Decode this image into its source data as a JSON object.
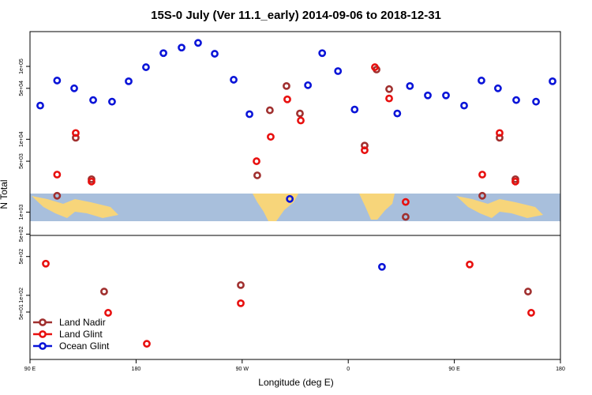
{
  "chart_data": {
    "type": "scatter",
    "title": "15S-0 July (Ver 11.1_early)   2014-09-06 to 2018-12-31",
    "xlabel": "Longitude (deg E)",
    "ylabel": "N Total",
    "xlim": [
      90,
      540
    ],
    "xticks": [
      {
        "value": 90,
        "label": "90 E"
      },
      {
        "value": 180,
        "label": "180"
      },
      {
        "value": 270,
        "label": "90 W"
      },
      {
        "value": 360,
        "label": "0"
      },
      {
        "value": 450,
        "label": "90 E"
      },
      {
        "value": 540,
        "label": "180"
      }
    ],
    "legend": "bottom-left",
    "series": [
      {
        "name": "Land Nadir",
        "color": "#a0302f"
      },
      {
        "name": "Land Glint",
        "color": "#e8100f"
      },
      {
        "name": "Ocean Glint",
        "color": "#0a14d8"
      }
    ],
    "panels": [
      {
        "log": true,
        "ylim": [
          480,
          300000
        ],
        "yticks": [
          {
            "value": 500,
            "label": "5e+02"
          },
          {
            "value": 1000,
            "label": "1e+03"
          },
          {
            "value": 5000,
            "label": "5e+03"
          },
          {
            "value": 10000,
            "label": "1e+04"
          },
          {
            "value": 50000,
            "label": "5e+04"
          },
          {
            "value": 100000,
            "label": "1e+05"
          }
        ],
        "series": [
          {
            "x": [
              113,
              128.8,
              142.2,
              282.8,
              293.5,
              307.6,
              319,
              373.9,
              384,
              394.7,
              408.7,
              473.7,
              488.4,
              501.8
            ],
            "values": [
              1680,
              10500,
              2830,
              3200,
              25000,
              53800,
              22600,
              8200,
              90600,
              48800,
              862,
              1680,
              10500,
              2830
            ]
          },
          {
            "x": [
              113,
              128.8,
              142.2,
              282.2,
              294.2,
              308.3,
              319.7,
              373.9,
              382.6,
              394.7,
              408.7,
              473.7,
              488.4,
              501.8
            ],
            "values": [
              3280,
              12200,
              2630,
              5000,
              10800,
              35300,
              18100,
              7070,
              97500,
              36300,
              1380,
              3280,
              12200,
              2630
            ]
          },
          {
            "x": [
              98.7,
              113,
              127.5,
              143.6,
              159.6,
              173.7,
              188.4,
              203.2,
              218.6,
              232.6,
              246.7,
              262.8,
              276.2,
              310.4,
              325.8,
              337.9,
              351.3,
              365.4,
              401.6,
              412.3,
              427.5,
              442.9,
              458.3,
              473,
              487,
              502.5,
              519.3,
              533.3
            ],
            "values": [
              29000,
              64000,
              50000,
              34500,
              32800,
              62500,
              97500,
              152000,
              181000,
              210000,
              149000,
              65600,
              22100,
              1520,
              55200,
              152000,
              86100,
              25600,
              22600,
              53800,
              40000,
              40000,
              29000,
              64000,
              50000,
              34500,
              32800,
              62500
            ]
          }
        ]
      },
      {
        "log": true,
        "ylim": [
          7,
          1200
        ],
        "yticks": [
          {
            "value": 50,
            "label": "5e+01"
          },
          {
            "value": 100,
            "label": "1e+02"
          },
          {
            "value": 500,
            "label": "5e+02"
          }
        ],
        "series": [
          {
            "x": [
              152.9,
              268.8,
              512.5
            ],
            "values": [
              117,
              153,
              117
            ]
          },
          {
            "x": [
              103.4,
              156.3,
              268.8,
              189.1,
              463,
              515.2
            ],
            "values": [
              372,
              48.5,
              72,
              13.4,
              360,
              48.5
            ]
          },
          {
            "x": [
              388.6
            ],
            "values": [
              326
            ]
          }
        ]
      }
    ]
  }
}
